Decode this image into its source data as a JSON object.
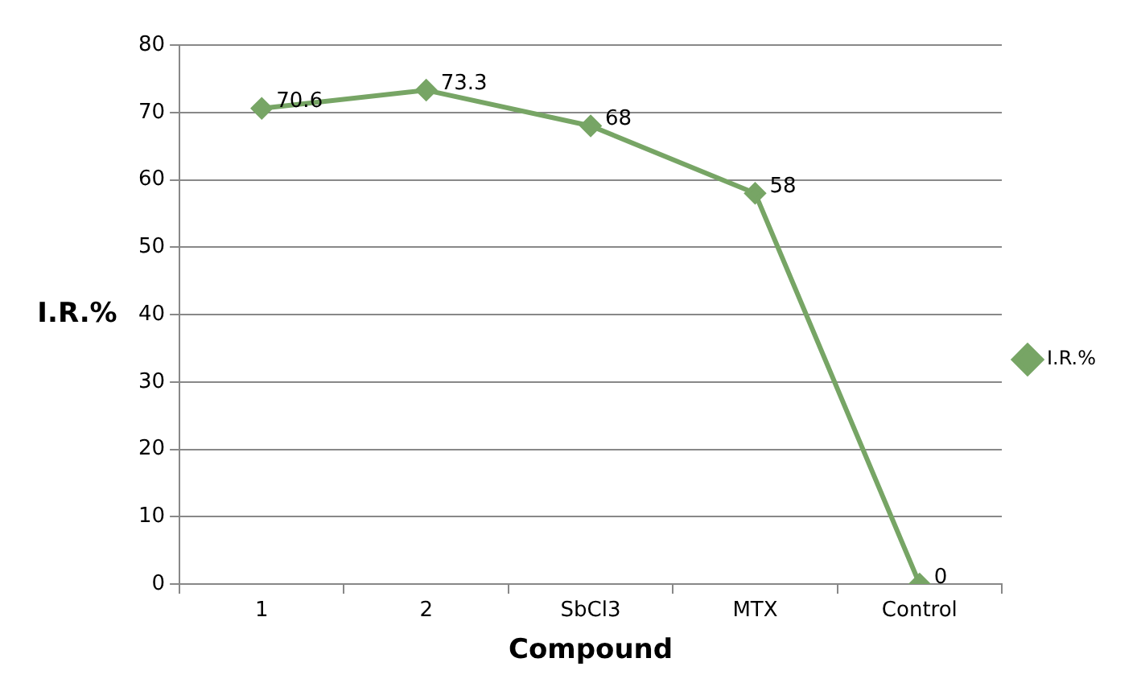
{
  "chart_data": {
    "type": "line",
    "xlabel": "Compound",
    "ylabel": "I.R.%",
    "categories": [
      "1",
      "2",
      "SbCl3",
      "MTX",
      "Control"
    ],
    "series": [
      {
        "name": "I.R.%",
        "color": "#77a565",
        "values": [
          70.6,
          73.3,
          68,
          58,
          0
        ]
      }
    ],
    "ylim": [
      0,
      80
    ],
    "yticks": [
      0,
      10,
      20,
      30,
      40,
      50,
      60,
      70,
      80
    ],
    "grid": "y",
    "legend": "right",
    "marker": "diamond",
    "line_style": "solid",
    "data_labels": true
  }
}
